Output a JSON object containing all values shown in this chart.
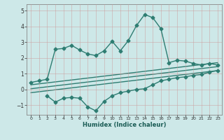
{
  "xlabel": "Humidex (Indice chaleur)",
  "background_color": "#cde8e8",
  "grid_color": "#b0c8c8",
  "line_color": "#2e7d72",
  "xlim": [
    -0.5,
    23.5
  ],
  "ylim": [
    -1.6,
    5.4
  ],
  "xticks": [
    0,
    1,
    2,
    3,
    4,
    5,
    6,
    7,
    8,
    9,
    10,
    11,
    12,
    13,
    14,
    15,
    16,
    17,
    18,
    19,
    20,
    21,
    22,
    23
  ],
  "yticks": [
    -1,
    0,
    1,
    2,
    3,
    4,
    5
  ],
  "main_x": [
    0,
    1,
    2,
    3,
    4,
    5,
    6,
    7,
    8,
    9,
    10,
    11,
    12,
    13,
    14,
    15,
    16,
    17,
    18,
    19,
    20,
    21,
    22,
    23
  ],
  "main_y": [
    0.45,
    0.55,
    0.65,
    2.55,
    2.6,
    2.8,
    2.5,
    2.25,
    2.15,
    2.45,
    3.05,
    2.45,
    3.1,
    4.05,
    4.75,
    4.55,
    3.85,
    1.7,
    1.85,
    1.8,
    1.65,
    1.55,
    1.65,
    1.55
  ],
  "lower_x": [
    2,
    3,
    4,
    5,
    6,
    7,
    8,
    9,
    10,
    11,
    12,
    13,
    14,
    15,
    16,
    17,
    18,
    19,
    20,
    21,
    22,
    23
  ],
  "lower_y": [
    -0.4,
    -0.8,
    -0.55,
    -0.5,
    -0.55,
    -1.1,
    -1.35,
    -0.75,
    -0.4,
    -0.2,
    -0.1,
    0.0,
    0.05,
    0.3,
    0.55,
    0.65,
    0.75,
    0.8,
    0.9,
    0.95,
    1.1,
    1.2
  ],
  "trend1_x": [
    0,
    23
  ],
  "trend1_y": [
    0.3,
    1.7
  ],
  "trend2_x": [
    0,
    23
  ],
  "trend2_y": [
    0.05,
    1.45
  ],
  "trend3_x": [
    0,
    23
  ],
  "trend3_y": [
    -0.2,
    1.2
  ],
  "marker": "D",
  "markersize": 2.5,
  "linewidth": 1.0
}
